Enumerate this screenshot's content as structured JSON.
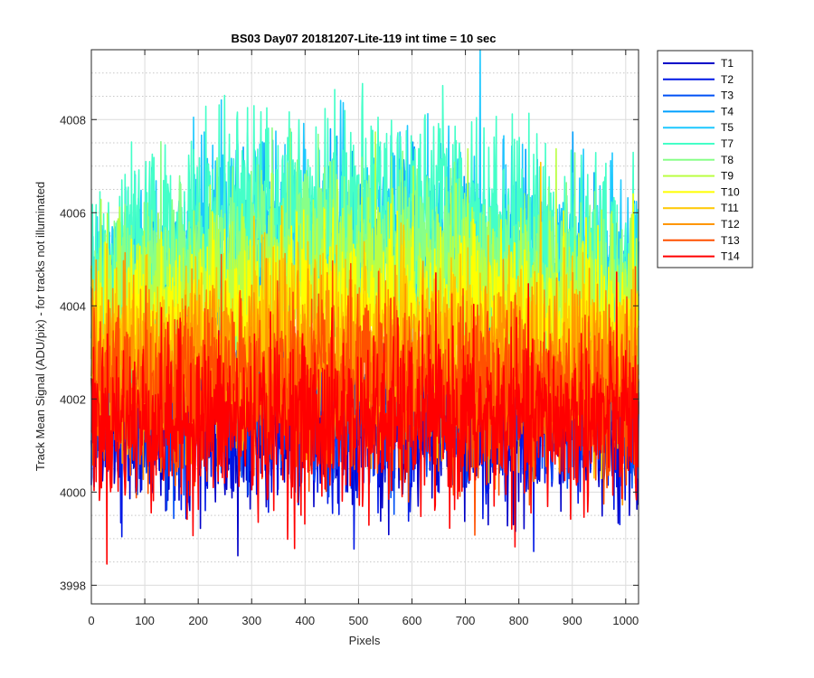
{
  "chart_data": {
    "type": "line",
    "title": "BS03 Day07 20181207-Lite-119 int time = 10 sec",
    "xlabel": "Pixels",
    "ylabel": "Track Mean Signal (ADU/pix) - for tracks not illuminated",
    "xlim": [
      0,
      1024
    ],
    "ylim": [
      3997.6,
      4009.5
    ],
    "xticks": [
      0,
      100,
      200,
      300,
      400,
      500,
      600,
      700,
      800,
      900,
      1000
    ],
    "yticks": [
      3998,
      4000,
      4002,
      4004,
      4006,
      4008
    ],
    "minor_y_step": 0.5,
    "grid": true,
    "legend_position": "outside-right-top",
    "x_points": 1024,
    "series": [
      {
        "name": "T1",
        "color": "#0000c8",
        "mean": 4001.4,
        "noise": 0.85,
        "trend": 0.0
      },
      {
        "name": "T2",
        "color": "#0018e6",
        "mean": 4001.6,
        "noise": 0.85,
        "trend": 0.0
      },
      {
        "name": "T3",
        "color": "#0050f5",
        "mean": 4002.0,
        "noise": 0.85,
        "trend": 0.1
      },
      {
        "name": "T4",
        "color": "#00a0ff",
        "mean": 4004.6,
        "noise": 1.0,
        "trend": 1.3
      },
      {
        "name": "T5",
        "color": "#1ec8ff",
        "mean": 4005.0,
        "noise": 1.0,
        "trend": 1.3
      },
      {
        "name": "T7",
        "color": "#44ffc8",
        "mean": 4005.4,
        "noise": 1.1,
        "trend": 1.5
      },
      {
        "name": "T8",
        "color": "#88ff88",
        "mean": 4004.6,
        "noise": 1.0,
        "trend": 1.0
      },
      {
        "name": "T9",
        "color": "#bbff44",
        "mean": 4004.0,
        "noise": 0.95,
        "trend": 0.7
      },
      {
        "name": "T10",
        "color": "#ffff00",
        "mean": 4003.5,
        "noise": 0.95,
        "trend": 0.5
      },
      {
        "name": "T11",
        "color": "#ffc800",
        "mean": 4003.0,
        "noise": 0.95,
        "trend": 0.3
      },
      {
        "name": "T12",
        "color": "#ff9600",
        "mean": 4002.6,
        "noise": 0.95,
        "trend": 0.2
      },
      {
        "name": "T13",
        "color": "#ff5000",
        "mean": 4002.2,
        "noise": 0.95,
        "trend": 0.1
      },
      {
        "name": "T14",
        "color": "#ff0000",
        "mean": 4001.5,
        "noise": 0.9,
        "trend": 0.0
      }
    ]
  }
}
